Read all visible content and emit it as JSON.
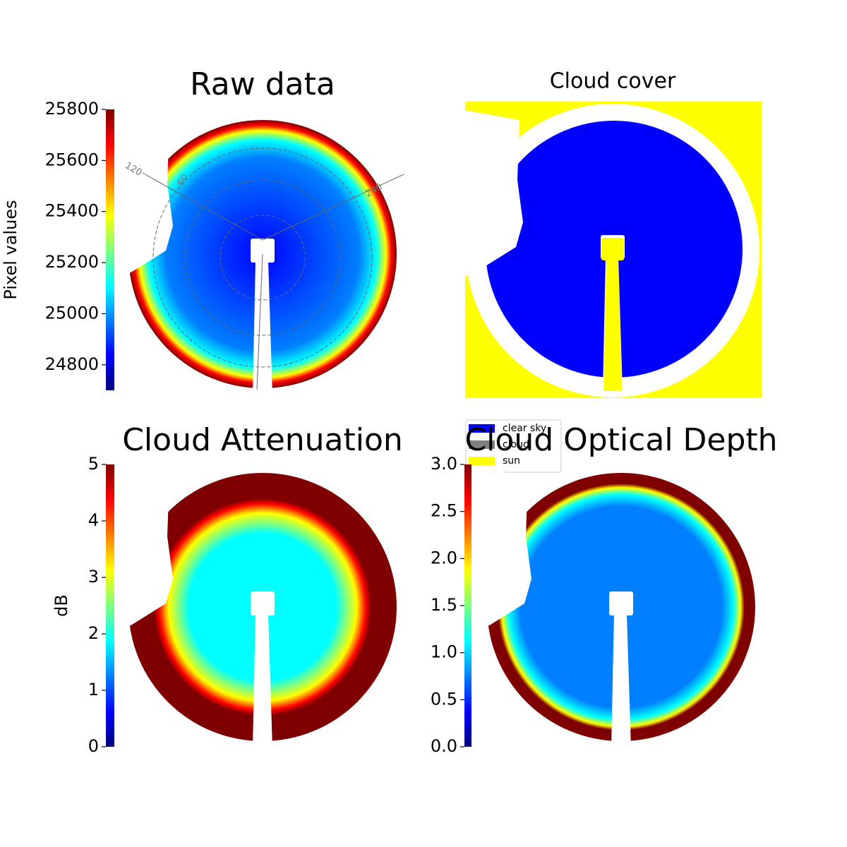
{
  "chart_data": [
    {
      "type": "heatmap",
      "title": "Raw data",
      "colorbar_label": "Pixel values",
      "ylim": [
        24700,
        25800
      ],
      "yticks": [
        24800,
        25000,
        25200,
        25400,
        25600,
        25800
      ],
      "colormap": [
        "#00007f",
        "#0000ff",
        "#007fff",
        "#00ffff",
        "#7fff7f",
        "#ffff00",
        "#ff7f00",
        "#ff0000",
        "#7f0000"
      ],
      "annotations": [
        "120",
        "60",
        "240"
      ]
    },
    {
      "type": "categorical",
      "title": "Cloud cover",
      "series": [
        {
          "name": "clear sky",
          "color": "#0000ff"
        },
        {
          "name": "cloud",
          "color": "#808080"
        },
        {
          "name": "sun",
          "color": "#ffff00"
        }
      ]
    },
    {
      "type": "heatmap",
      "title": "Cloud Attenuation",
      "colorbar_label": "dB",
      "ylim": [
        0,
        5
      ],
      "yticks": [
        0,
        1,
        2,
        3,
        4,
        5
      ],
      "colormap": [
        "#00007f",
        "#0000ff",
        "#007fff",
        "#00ffff",
        "#7fff7f",
        "#ffff00",
        "#ff7f00",
        "#ff0000",
        "#7f0000"
      ]
    },
    {
      "type": "heatmap",
      "title": "Cloud Optical Depth",
      "ylim": [
        0,
        3
      ],
      "yticks": [
        {
          "value": 0,
          "label": "0.0"
        },
        {
          "value": 0.5,
          "label": "0.5"
        },
        {
          "value": 1,
          "label": "1.0"
        },
        {
          "value": 1.5,
          "label": "1.5"
        },
        {
          "value": 2,
          "label": "2.0"
        },
        {
          "value": 2.5,
          "label": "2.5"
        },
        {
          "value": 3,
          "label": "3.0"
        }
      ],
      "colormap": [
        "#00007f",
        "#0000ff",
        "#007fff",
        "#00ffff",
        "#7fff7f",
        "#ffff00",
        "#ff7f00",
        "#ff0000",
        "#7f0000"
      ]
    }
  ]
}
